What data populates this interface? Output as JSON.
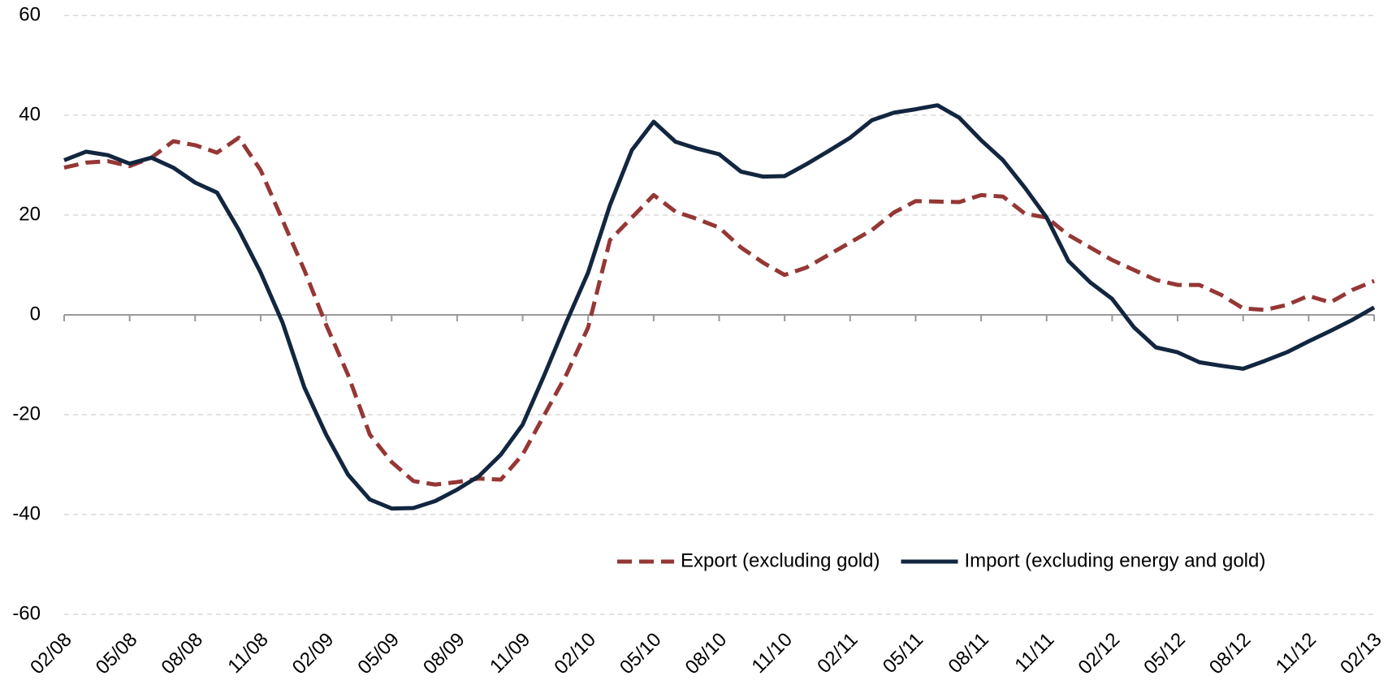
{
  "chart_data": {
    "type": "line",
    "categories": [
      "02/08",
      null,
      null,
      "05/08",
      null,
      null,
      "08/08",
      null,
      null,
      "11/08",
      null,
      null,
      "02/09",
      null,
      null,
      "05/09",
      null,
      null,
      "08/09",
      null,
      null,
      "11/09",
      null,
      null,
      "02/10",
      null,
      null,
      "05/10",
      null,
      null,
      "08/10",
      null,
      null,
      "11/10",
      null,
      null,
      "02/11",
      null,
      null,
      "05/11",
      null,
      null,
      "08/11",
      null,
      null,
      "11/11",
      null,
      null,
      "02/12",
      null,
      null,
      "05/12",
      null,
      null,
      "08/12",
      null,
      null,
      "11/12",
      null,
      null,
      "02/13"
    ],
    "series": [
      {
        "name": "Export (excluding gold)",
        "color": "#953735",
        "dashed": true,
        "values": [
          29.5,
          30.5,
          30.8,
          29.8,
          31.5,
          34.8,
          34,
          32.5,
          35.5,
          29,
          19,
          9,
          -2,
          -12,
          -24,
          -29.5,
          -33.3,
          -34,
          -33.5,
          -32.8,
          -33,
          -28,
          -20,
          -12,
          -2.5,
          15,
          19.5,
          24,
          20.7,
          19.2,
          17.5,
          13.5,
          10.5,
          8,
          9.5,
          12,
          14.5,
          17,
          20.5,
          22.8,
          22.7,
          22.6,
          24,
          23.7,
          20.3,
          19.5,
          16,
          13.5,
          11,
          9,
          7,
          6,
          6,
          4,
          1.3,
          1,
          2,
          3.8,
          2.5,
          5,
          6.8
        ]
      },
      {
        "name": "Import (excluding energy and gold)",
        "color": "#12263f",
        "dashed": false,
        "values": [
          31,
          32.7,
          32,
          30.3,
          31.5,
          29.5,
          26.5,
          24.5,
          17,
          8.5,
          -1.5,
          -14.5,
          -24,
          -32,
          -37,
          -38.8,
          -38.7,
          -37.3,
          -35,
          -32.3,
          -28,
          -22,
          -12,
          -1.5,
          8.5,
          22,
          33,
          38.7,
          34.7,
          33.3,
          32.2,
          28.7,
          27.7,
          27.8,
          30.2,
          32.8,
          35.5,
          39,
          40.5,
          41.2,
          42,
          39.5,
          35,
          31,
          25.5,
          19.5,
          10.8,
          6.5,
          3.2,
          -2.5,
          -6.5,
          -7.5,
          -9.5,
          -10.2,
          -10.8,
          -9.2,
          -7.5,
          -5.3,
          -3.2,
          -1,
          1.5
        ]
      }
    ],
    "ylim": [
      -60,
      60
    ],
    "yticks": [
      -60,
      -40,
      -20,
      0,
      20,
      40,
      60
    ],
    "grid": true,
    "legend": "lower right"
  }
}
